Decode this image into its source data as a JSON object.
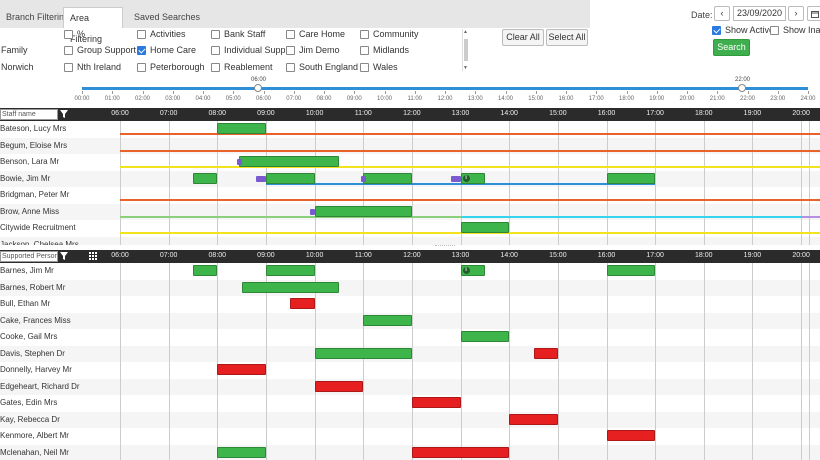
{
  "tabs": [
    {
      "label": "Branch Filtering",
      "active": false
    },
    {
      "label": "Area Filtering",
      "active": true
    },
    {
      "label": "Saved Searches",
      "active": false
    }
  ],
  "area_rows": [
    {
      "label": "",
      "items": [
        {
          "label": "%",
          "checked": false
        },
        {
          "label": "Activities",
          "checked": false
        },
        {
          "label": "Bank Staff",
          "checked": false
        },
        {
          "label": "Care Home",
          "checked": false
        },
        {
          "label": "Community",
          "checked": false
        }
      ]
    },
    {
      "label": "Family",
      "items": [
        {
          "label": "Group Support",
          "checked": false
        },
        {
          "label": "Home Care",
          "checked": true
        },
        {
          "label": "Individual Supp",
          "checked": false
        },
        {
          "label": "Jim Demo",
          "checked": false
        },
        {
          "label": "Midlands",
          "checked": false
        }
      ]
    },
    {
      "label": "Norwich",
      "items": [
        {
          "label": "Nth Ireland",
          "checked": false
        },
        {
          "label": "Peterborough",
          "checked": false
        },
        {
          "label": "Reablement",
          "checked": false
        },
        {
          "label": "South England",
          "checked": false
        },
        {
          "label": "Wales",
          "checked": false
        }
      ]
    }
  ],
  "buttons": {
    "clear_all": "Clear All",
    "select_all": "Select All",
    "search": "Search"
  },
  "date": {
    "label": "Date:",
    "value": "23/09/2020",
    "prev": "‹",
    "next": "›"
  },
  "show_active": {
    "label": "Show Active",
    "checked": true
  },
  "show_inactive": {
    "label": "Show Inact",
    "checked": false
  },
  "time_slider": {
    "start_label": "06:00",
    "end_label": "22:00",
    "ticks": [
      "00:00",
      "01:00",
      "02:00",
      "03:00",
      "04:00",
      "05:00",
      "06:00",
      "07:00",
      "08:00",
      "09:00",
      "10:00",
      "11:00",
      "12:00",
      "13:00",
      "14:00",
      "15:00",
      "16:00",
      "17:00",
      "18:00",
      "19:00",
      "20:00",
      "21:00",
      "22:00",
      "23:00",
      "24:00"
    ]
  },
  "hours": [
    "06:00",
    "07:00",
    "08:00",
    "09:00",
    "10:00",
    "11:00",
    "12:00",
    "13:00",
    "14:00",
    "15:00",
    "16:00",
    "17:00",
    "18:00",
    "19:00",
    "20:00"
  ],
  "colors": {
    "green": "#3db54a",
    "red": "#e62020",
    "purple": "#7a5acf",
    "orange": "#e8622a",
    "yellow": "#f2e31e",
    "lightgreen": "#8bd17c",
    "cyan": "#35d4ee",
    "blue": "#2e8fd6",
    "lavender": "#b58fe0"
  },
  "staff_panel": {
    "filter_placeholder": "Staff name",
    "rows": [
      {
        "name": "Bateson, Lucy Mrs",
        "bars": [
          {
            "s": 8.0,
            "e": 9.0,
            "c": "green"
          }
        ],
        "lines": [
          {
            "s": 6.0,
            "e": 20.5,
            "c": "orange"
          }
        ]
      },
      {
        "name": "Begum, Eloise Mrs",
        "bars": [],
        "lines": [
          {
            "s": 6.0,
            "e": 20.5,
            "c": "orange"
          }
        ]
      },
      {
        "name": "Benson, Lara Mr",
        "bars": [
          {
            "s": 8.45,
            "e": 10.5,
            "c": "green"
          },
          {
            "s": 8.4,
            "e": 8.5,
            "c": "purple"
          }
        ],
        "lines": [
          {
            "s": 6.0,
            "e": 20.5,
            "c": "yellow"
          }
        ]
      },
      {
        "name": "Bowie, Jim Mr",
        "bars": [
          {
            "s": 7.5,
            "e": 8.0,
            "c": "green"
          },
          {
            "s": 8.8,
            "e": 9.0,
            "c": "purple"
          },
          {
            "s": 9.0,
            "e": 10.0,
            "c": "green"
          },
          {
            "s": 11.0,
            "e": 12.0,
            "c": "green"
          },
          {
            "s": 10.95,
            "e": 11.05,
            "c": "purple"
          },
          {
            "s": 12.8,
            "e": 13.0,
            "c": "purple"
          },
          {
            "s": 13.0,
            "e": 13.5,
            "c": "green",
            "info": true
          },
          {
            "s": 16.0,
            "e": 17.0,
            "c": "green"
          }
        ],
        "lines": [
          {
            "s": 9.0,
            "e": 17.0,
            "c": "blue"
          }
        ]
      },
      {
        "name": "Bridgman, Peter Mr",
        "bars": [],
        "lines": [
          {
            "s": 6.0,
            "e": 20.5,
            "c": "orange"
          }
        ]
      },
      {
        "name": "Brow, Anne Miss",
        "bars": [
          {
            "s": 9.9,
            "e": 10.0,
            "c": "purple"
          },
          {
            "s": 10.0,
            "e": 12.0,
            "c": "green"
          }
        ],
        "lines": [
          {
            "s": 6.0,
            "e": 13.0,
            "c": "lightgreen"
          },
          {
            "s": 13.0,
            "e": 20.0,
            "c": "cyan"
          },
          {
            "s": 20.0,
            "e": 20.5,
            "c": "lavender"
          }
        ]
      },
      {
        "name": "Citywide Recruitment",
        "bars": [
          {
            "s": 13.0,
            "e": 14.0,
            "c": "green"
          }
        ],
        "lines": [
          {
            "s": 6.0,
            "e": 20.5,
            "c": "yellow"
          }
        ]
      },
      {
        "name": "Jackson, Chelsea Mrs",
        "bars": [],
        "lines": []
      }
    ]
  },
  "person_panel": {
    "filter_placeholder": "Supported Person name",
    "rows": [
      {
        "name": "Barnes, Jim Mr",
        "bars": [
          {
            "s": 7.5,
            "e": 8.0,
            "c": "green"
          },
          {
            "s": 9.0,
            "e": 10.0,
            "c": "green"
          },
          {
            "s": 13.0,
            "e": 13.5,
            "c": "green",
            "info": true
          },
          {
            "s": 16.0,
            "e": 17.0,
            "c": "green"
          }
        ]
      },
      {
        "name": "Barnes, Robert Mr",
        "bars": [
          {
            "s": 8.5,
            "e": 10.5,
            "c": "green"
          }
        ]
      },
      {
        "name": "Bull, Ethan Mr",
        "bars": [
          {
            "s": 9.5,
            "e": 10.0,
            "c": "red"
          }
        ]
      },
      {
        "name": "Cake, Frances Miss",
        "bars": [
          {
            "s": 11.0,
            "e": 12.0,
            "c": "green"
          }
        ]
      },
      {
        "name": "Cooke, Gail Mrs",
        "bars": [
          {
            "s": 13.0,
            "e": 14.0,
            "c": "green"
          }
        ]
      },
      {
        "name": "Davis, Stephen Dr",
        "bars": [
          {
            "s": 10.0,
            "e": 12.0,
            "c": "green"
          },
          {
            "s": 14.5,
            "e": 15.0,
            "c": "red"
          }
        ]
      },
      {
        "name": "Donnelly, Harvey Mr",
        "bars": [
          {
            "s": 8.0,
            "e": 9.0,
            "c": "red"
          }
        ]
      },
      {
        "name": "Edgeheart, Richard Dr",
        "bars": [
          {
            "s": 10.0,
            "e": 11.0,
            "c": "red"
          }
        ]
      },
      {
        "name": "Gates, Edin Mrs",
        "bars": [
          {
            "s": 12.0,
            "e": 13.0,
            "c": "red"
          }
        ]
      },
      {
        "name": "Kay, Rebecca Dr",
        "bars": [
          {
            "s": 14.0,
            "e": 15.0,
            "c": "red"
          }
        ]
      },
      {
        "name": "Kenmore, Albert Mr",
        "bars": [
          {
            "s": 16.0,
            "e": 17.0,
            "c": "red"
          }
        ]
      },
      {
        "name": "Mclenahan, Neil Mr",
        "bars": [
          {
            "s": 8.0,
            "e": 9.0,
            "c": "green"
          },
          {
            "s": 12.0,
            "e": 14.0,
            "c": "red"
          }
        ]
      }
    ]
  }
}
